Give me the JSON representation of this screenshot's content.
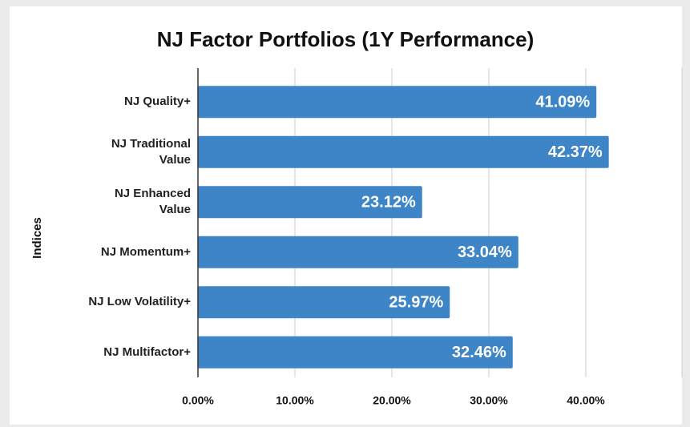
{
  "chart_data": {
    "type": "bar",
    "orientation": "horizontal",
    "title": "NJ Factor Portfolios (1Y Performance)",
    "y_label": "Indices",
    "categories": [
      "NJ Quality+",
      "NJ Traditional\nValue",
      "NJ Enhanced\nValue",
      "NJ Momentum+",
      "NJ Low Volatility+",
      "NJ Multifactor+"
    ],
    "values": [
      41.09,
      42.37,
      23.12,
      33.04,
      25.97,
      32.46
    ],
    "value_labels": [
      "41.09%",
      "42.37%",
      "23.12%",
      "33.04%",
      "25.97%",
      "32.46%"
    ],
    "color": "#3d85c6",
    "xlim": [
      0,
      50
    ],
    "xticks": [
      {
        "value": 0,
        "label": "0.00%"
      },
      {
        "value": 10,
        "label": "10.00%"
      },
      {
        "value": 20,
        "label": "20.00%"
      },
      {
        "value": 30,
        "label": "30.00%"
      },
      {
        "value": 40,
        "label": "40.00%"
      }
    ],
    "grid": true
  }
}
